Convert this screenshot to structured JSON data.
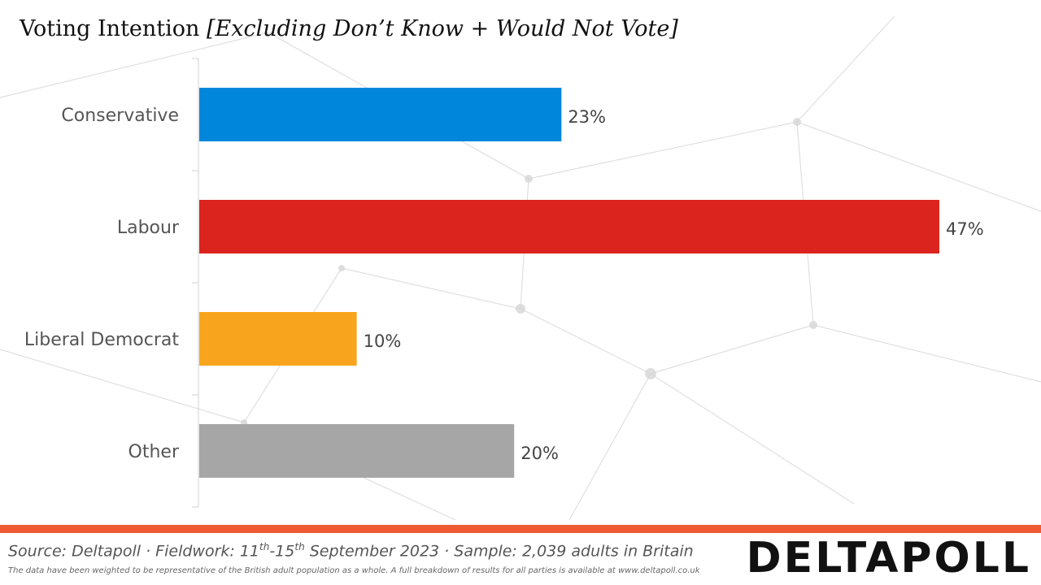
{
  "title": {
    "main": "Voting Intention",
    "qualifier": "[Excluding Don’t Know + Would Not Vote]"
  },
  "chart_data": {
    "type": "bar",
    "orientation": "horizontal",
    "categories": [
      "Conservative",
      "Labour",
      "Liberal Democrat",
      "Other"
    ],
    "values": [
      23,
      47,
      10,
      20
    ],
    "value_labels": [
      "23%",
      "47%",
      "10%",
      "20%"
    ],
    "colors": [
      "#0087dc",
      "#dc241f",
      "#f8a51d",
      "#a6a6a6"
    ],
    "xlim": [
      0,
      50
    ],
    "grid": false,
    "legend": "none"
  },
  "footer": {
    "source_prefix": "Source: Deltapoll · Fieldwork: 11",
    "sup1": "th",
    "source_mid": "-15",
    "sup2": "th",
    "source_suffix": " September 2023 · Sample: 2,039 adults in Britain",
    "note": "The data have been weighted to be representative of the British adult population as a whole. A full breakdown of results for all parties is available at www.deltapoll.co.uk",
    "logo_text": "DELTAPOLL",
    "accent_color": "#ee5a32"
  }
}
